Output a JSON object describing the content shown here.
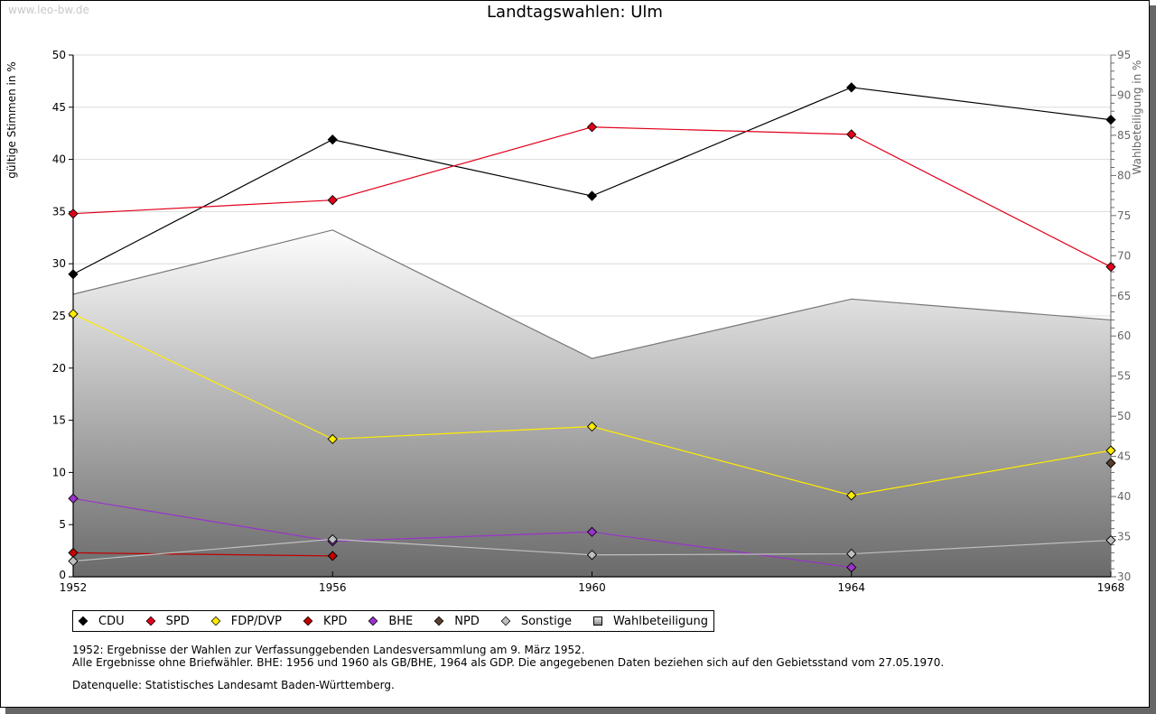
{
  "watermark": "www.leo-bw.de",
  "chart_data": {
    "type": "line",
    "title": "Landtagswahlen: Ulm",
    "xlabel": "",
    "ylabel": "gültige Stimmen in %",
    "y2label": "Wahlbeteiligung in %",
    "ylim": [
      0,
      50
    ],
    "y2lim": [
      30,
      95
    ],
    "grid": true,
    "legend_position": "bottom",
    "x": [
      "1952",
      "1956",
      "1960",
      "1964",
      "1968"
    ],
    "yticks": [
      "0",
      "5",
      "10",
      "15",
      "20",
      "25",
      "30",
      "35",
      "40",
      "45",
      "50"
    ],
    "y2ticks": [
      "30",
      "35",
      "40",
      "45",
      "50",
      "55",
      "60",
      "65",
      "70",
      "75",
      "80",
      "85",
      "90",
      "95"
    ],
    "series": [
      {
        "name": "CDU",
        "color": "#000000",
        "values": [
          29.0,
          41.9,
          36.5,
          46.9,
          43.8
        ]
      },
      {
        "name": "SPD",
        "color": "#e2001a",
        "values": [
          34.8,
          36.1,
          43.1,
          42.4,
          29.7
        ]
      },
      {
        "name": "FDP/DVP",
        "color": "#ffed00",
        "values": [
          25.2,
          13.2,
          14.4,
          7.8,
          12.1
        ]
      },
      {
        "name": "KPD",
        "color": "#c00000",
        "values": [
          2.3,
          2.0,
          null,
          null,
          null
        ]
      },
      {
        "name": "BHE",
        "color": "#9933cc",
        "values": [
          7.5,
          3.4,
          4.3,
          0.9,
          null
        ]
      },
      {
        "name": "NPD",
        "color": "#5c3d2e",
        "values": [
          null,
          null,
          null,
          null,
          10.9
        ]
      },
      {
        "name": "Sonstige",
        "color": "#c0c0c0",
        "values": [
          1.5,
          3.6,
          2.1,
          2.2,
          3.5
        ]
      }
    ],
    "turnout": {
      "name": "Wahlbeteiligung",
      "axis": "right",
      "type": "area",
      "values": [
        65.2,
        73.2,
        57.2,
        64.6,
        62.0
      ]
    }
  },
  "legend": [
    {
      "label": "CDU",
      "color": "#000000",
      "symbol": "diamond"
    },
    {
      "label": "SPD",
      "color": "#e2001a",
      "symbol": "diamond"
    },
    {
      "label": "FDP/DVP",
      "color": "#ffed00",
      "symbol": "diamond"
    },
    {
      "label": "KPD",
      "color": "#c00000",
      "symbol": "diamond"
    },
    {
      "label": "BHE",
      "color": "#9933cc",
      "symbol": "diamond"
    },
    {
      "label": "NPD",
      "color": "#5c3d2e",
      "symbol": "diamond"
    },
    {
      "label": "Sonstige",
      "color": "#c0c0c0",
      "symbol": "diamond"
    },
    {
      "label": "Wahlbeteiligung",
      "color": "#aaaaaa",
      "symbol": "square"
    }
  ],
  "notes": [
    "1952: Ergebnisse der Wahlen zur Verfassunggebenden Landesversammlung am 9. März 1952.",
    "Alle Ergebnisse ohne Briefwähler. BHE: 1956 und 1960 als GB/BHE, 1964 als GDP. Die angegebenen Daten beziehen sich auf den Gebietsstand vom 27.05.1970."
  ],
  "source": "Datenquelle: Statistisches Landesamt Baden-Württemberg."
}
